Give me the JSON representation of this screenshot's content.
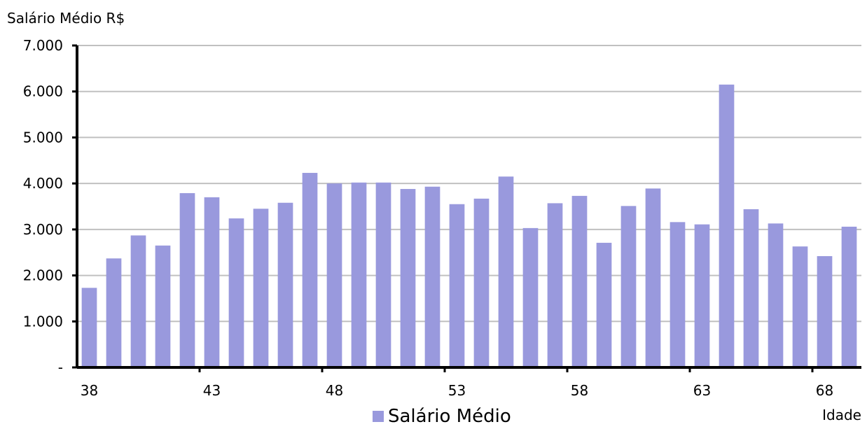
{
  "chart_data": {
    "type": "bar",
    "ylabel": "Salário Médio R$",
    "xlabel": "Idade",
    "x": [
      38,
      39,
      40,
      41,
      42,
      43,
      44,
      45,
      46,
      47,
      48,
      49,
      50,
      51,
      52,
      53,
      54,
      55,
      56,
      57,
      58,
      59,
      60,
      61,
      62,
      63,
      64,
      65,
      66,
      67,
      68,
      69
    ],
    "xticks": [
      38,
      43,
      48,
      53,
      58,
      63,
      68
    ],
    "ylim": [
      0,
      7000
    ],
    "yticks": [
      0,
      1000,
      2000,
      3000,
      4000,
      5000,
      6000,
      7000
    ],
    "ytick_labels": [
      "-",
      "1.000",
      "2.000",
      "3.000",
      "4.000",
      "5.000",
      "6.000",
      "7.000"
    ],
    "grid": true,
    "legend_position": "bottom",
    "bar_color": "#9999dd",
    "series": [
      {
        "name": "Salário Médio",
        "values": [
          1730,
          2370,
          2870,
          2650,
          3790,
          3700,
          3240,
          3450,
          3580,
          4230,
          4000,
          4020,
          4020,
          3880,
          3930,
          3550,
          3670,
          4150,
          3030,
          3570,
          3730,
          2710,
          3510,
          3890,
          3160,
          3110,
          6150,
          3440,
          3130,
          2630,
          2420,
          3060
        ]
      }
    ]
  }
}
